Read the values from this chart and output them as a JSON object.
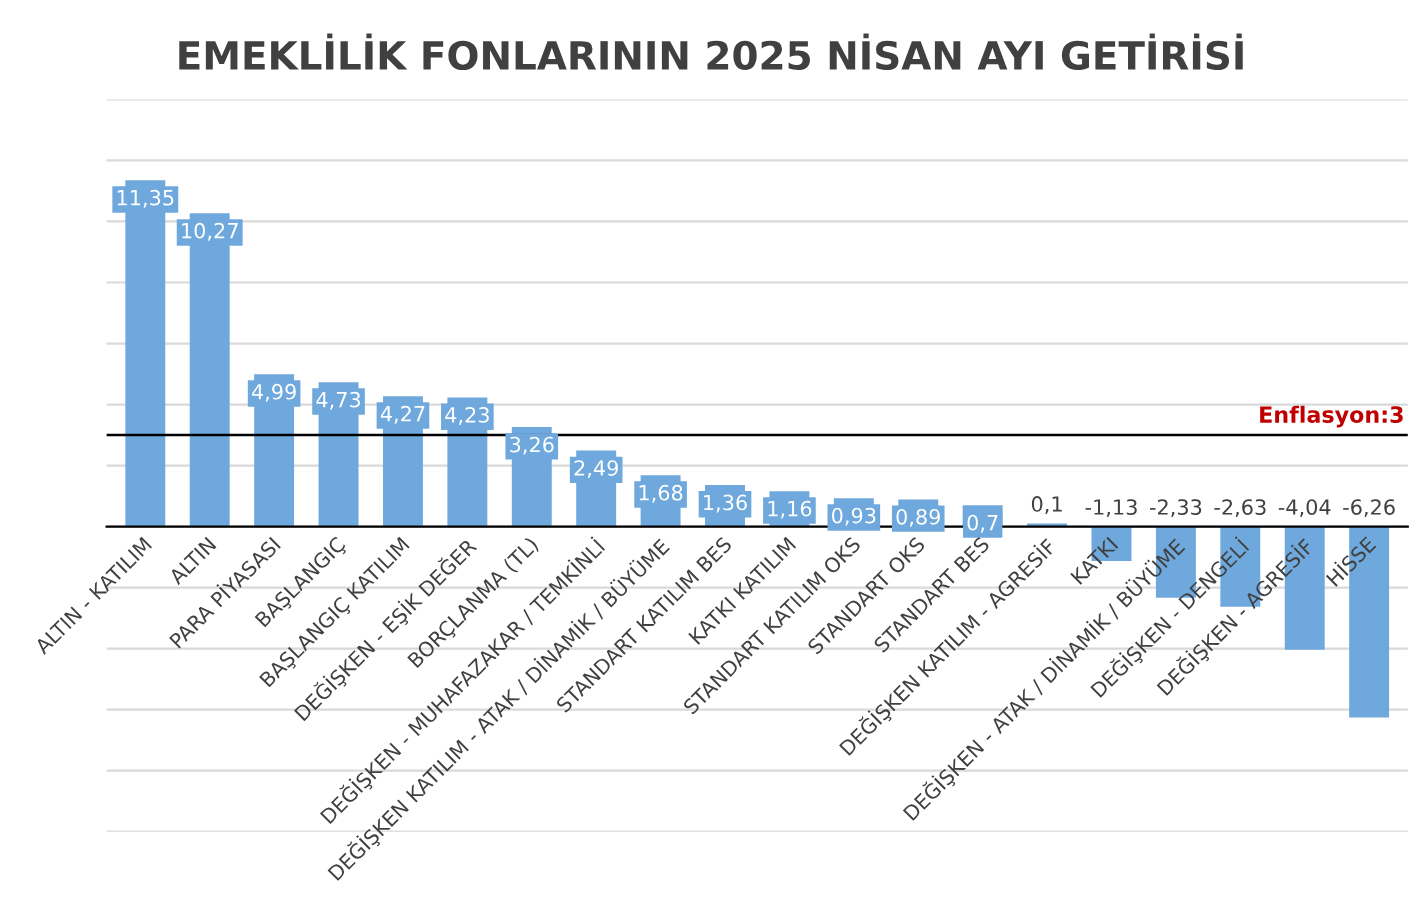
{
  "chart_data": {
    "type": "bar",
    "title": "EMEKLİLİK FONLARININ 2025 NİSAN AYI GETİRİSİ",
    "categories": [
      "ALTIN - KATILIM",
      "ALTIN",
      "PARA PİYASASI",
      "BAŞLANGIÇ",
      "BAŞLANGIÇ KATILIM",
      "DEĞİŞKEN - EŞİK DEĞER",
      "BORÇLANMA (TL)",
      "DEĞİŞKEN - MUHAFAZAKAR / TEMKİNLİ",
      "DEĞİŞKEN KATILIM - ATAK / DİNAMİK / BÜYÜME",
      "STANDART KATILIM BES",
      "KATKI KATILIM",
      "STANDART KATILIM OKS",
      "STANDART OKS",
      "STANDART BES",
      "DEĞİŞKEN KATILIM - AGRESİF",
      "KATKI",
      "DEĞİŞKEN - ATAK / DİNAMİK / BÜYÜME",
      "DEĞİŞKEN - DENGELİ",
      "DEĞİŞKEN - AGRESİF",
      "HİSSE"
    ],
    "values": [
      11.35,
      10.27,
      4.99,
      4.73,
      4.27,
      4.23,
      3.26,
      2.49,
      1.68,
      1.36,
      1.16,
      0.93,
      0.89,
      0.7,
      0.1,
      -1.13,
      -2.33,
      -2.63,
      -4.04,
      -6.26
    ],
    "value_labels": [
      "11,35",
      "10,27",
      "4,99",
      "4,73",
      "4,27",
      "4,23",
      "3,26",
      "2,49",
      "1,68",
      "1,36",
      "1,16",
      "0,93",
      "0,89",
      "0,7",
      "0,1",
      "-1,13",
      "-2,33",
      "-2,63",
      "-4,04",
      "-6,26"
    ],
    "color": "#6fa8dc",
    "ylim": [
      -10,
      14
    ],
    "yticks": [
      {
        "value": -10,
        "label": null
      },
      {
        "value": -8,
        "label": null
      },
      {
        "value": -6,
        "label": null
      },
      {
        "value": -4,
        "label": null
      },
      {
        "value": -2,
        "label": null
      },
      {
        "value": 0,
        "label": null
      },
      {
        "value": 2,
        "label": null
      },
      {
        "value": 4,
        "label": null
      },
      {
        "value": 6,
        "label": null
      },
      {
        "value": 8,
        "label": null
      },
      {
        "value": 10,
        "label": null
      },
      {
        "value": 12,
        "label": null
      },
      {
        "value": 14,
        "label": null
      }
    ],
    "tick_labels": "x",
    "grid": "y",
    "ref_lines": [
      {
        "axis": "y",
        "value": 3,
        "label": "Enflasyon:3",
        "color": "#000000"
      }
    ]
  }
}
